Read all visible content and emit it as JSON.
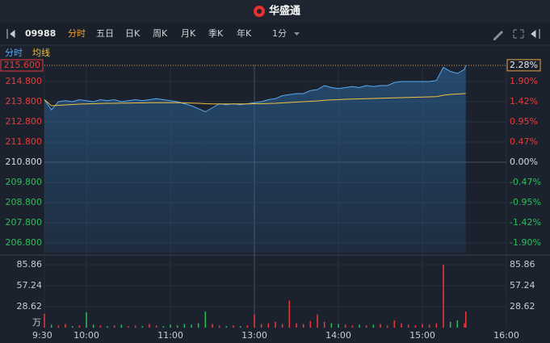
{
  "header": {
    "title": "华盛通"
  },
  "toolbar": {
    "code": "09988",
    "tabs": [
      "分时",
      "五日",
      "日K",
      "周K",
      "月K",
      "季K",
      "年K"
    ],
    "interval": "1分"
  },
  "chart_data": {
    "type": "line",
    "grid": true,
    "x": [
      0,
      5,
      10,
      15,
      20,
      25,
      30,
      35,
      40,
      45,
      50,
      55,
      60,
      65,
      70,
      75,
      80,
      85,
      90,
      95,
      100,
      105,
      110,
      115,
      120,
      125,
      130,
      135,
      140,
      145,
      150,
      155,
      160,
      165,
      170,
      175,
      180,
      185,
      190,
      195,
      200,
      205,
      210,
      215,
      220,
      225,
      230,
      235,
      240,
      245,
      250,
      255,
      260,
      265,
      270,
      275,
      280,
      285,
      290,
      295,
      300,
      301
    ],
    "xlim": [
      0,
      330
    ],
    "xticks": [
      {
        "value": 0,
        "label": "9:30"
      },
      {
        "value": 30,
        "label": "10:00"
      },
      {
        "value": 90,
        "label": "11:00"
      },
      {
        "value": 150,
        "label": "13:00"
      },
      {
        "value": 210,
        "label": "14:00"
      },
      {
        "value": 270,
        "label": "15:00"
      },
      {
        "value": 330,
        "label": "16:00"
      }
    ],
    "series": [
      {
        "name": "分时",
        "color": "#5aa9f0",
        "values": [
          213.9,
          213.4,
          213.8,
          213.85,
          213.8,
          213.9,
          213.85,
          213.8,
          213.9,
          213.85,
          213.9,
          213.8,
          213.85,
          213.9,
          213.85,
          213.9,
          213.95,
          213.9,
          213.85,
          213.8,
          213.7,
          213.6,
          213.45,
          213.3,
          213.5,
          213.7,
          213.65,
          213.7,
          213.65,
          213.7,
          213.75,
          213.8,
          213.9,
          213.95,
          214.1,
          214.15,
          214.2,
          214.2,
          214.35,
          214.4,
          214.6,
          214.5,
          214.45,
          214.5,
          214.55,
          214.5,
          214.6,
          214.55,
          214.6,
          214.6,
          214.75,
          214.8,
          214.8,
          214.8,
          214.8,
          214.8,
          214.85,
          215.5,
          215.3,
          215.2,
          215.4,
          215.6
        ]
      },
      {
        "name": "均线",
        "color": "#f0c040",
        "values": [
          213.9,
          213.6,
          213.62,
          213.64,
          213.66,
          213.68,
          213.69,
          213.7,
          213.71,
          213.72,
          213.72,
          213.73,
          213.73,
          213.74,
          213.74,
          213.75,
          213.75,
          213.75,
          213.75,
          213.75,
          213.74,
          213.73,
          213.72,
          213.7,
          213.69,
          213.69,
          213.69,
          213.69,
          213.69,
          213.69,
          213.7,
          213.7,
          213.71,
          213.72,
          213.74,
          213.76,
          213.78,
          213.8,
          213.82,
          213.84,
          213.87,
          213.89,
          213.9,
          213.92,
          213.93,
          213.94,
          213.95,
          213.96,
          213.97,
          213.98,
          213.99,
          214.0,
          214.01,
          214.02,
          214.03,
          214.04,
          214.05,
          214.12,
          214.16,
          214.18,
          214.2,
          214.22
        ]
      }
    ],
    "ylim": [
      206.32,
      215.64
    ],
    "yticks": [
      {
        "value": 214.8,
        "label": "214.800"
      },
      {
        "value": 213.8,
        "label": "213.800"
      },
      {
        "value": 212.8,
        "label": "212.800"
      },
      {
        "value": 211.8,
        "label": "211.800"
      },
      {
        "value": 210.8,
        "label": "210.800"
      },
      {
        "value": 209.8,
        "label": "209.800"
      },
      {
        "value": 208.8,
        "label": "208.800"
      },
      {
        "value": 207.8,
        "label": "207.800"
      },
      {
        "value": 206.8,
        "label": "206.800"
      }
    ],
    "y2lim": [
      -2.125,
      2.296
    ],
    "y2ticks": [
      {
        "value": 1.9,
        "label": "1.90%"
      },
      {
        "value": 1.42,
        "label": "1.42%"
      },
      {
        "value": 0.95,
        "label": "0.95%"
      },
      {
        "value": 0.47,
        "label": "0.47%"
      },
      {
        "value": 0,
        "label": "0.00%"
      },
      {
        "value": -0.47,
        "label": "-0.47%"
      },
      {
        "value": -0.95,
        "label": "-0.95%"
      },
      {
        "value": -1.42,
        "label": "-1.42%"
      },
      {
        "value": -1.9,
        "label": "-1.90%"
      }
    ],
    "last_price": {
      "value": 215.6,
      "label": "215.600"
    },
    "last_change": {
      "value": 2.28,
      "label": "2.28%"
    },
    "up_color": "#e83b3b",
    "down_color": "#2ebd5b",
    "volume": {
      "values": [
        19,
        4,
        3,
        5,
        2,
        3,
        21,
        4,
        3,
        2,
        3,
        4,
        2,
        3,
        2,
        5,
        3,
        2,
        4,
        3,
        5,
        4,
        6,
        22,
        5,
        3,
        2,
        3,
        2,
        3,
        18,
        5,
        6,
        8,
        5,
        37,
        6,
        5,
        9,
        18,
        8,
        6,
        5,
        4,
        3,
        4,
        3,
        4,
        5,
        3,
        10,
        6,
        4,
        3,
        5,
        4,
        6,
        85.86,
        8,
        10,
        6,
        22
      ],
      "ylim": [
        0,
        96.9
      ],
      "yticks": [
        85.86,
        57.24,
        28.62,
        {
          "value": 0,
          "label": "万"
        }
      ]
    }
  }
}
